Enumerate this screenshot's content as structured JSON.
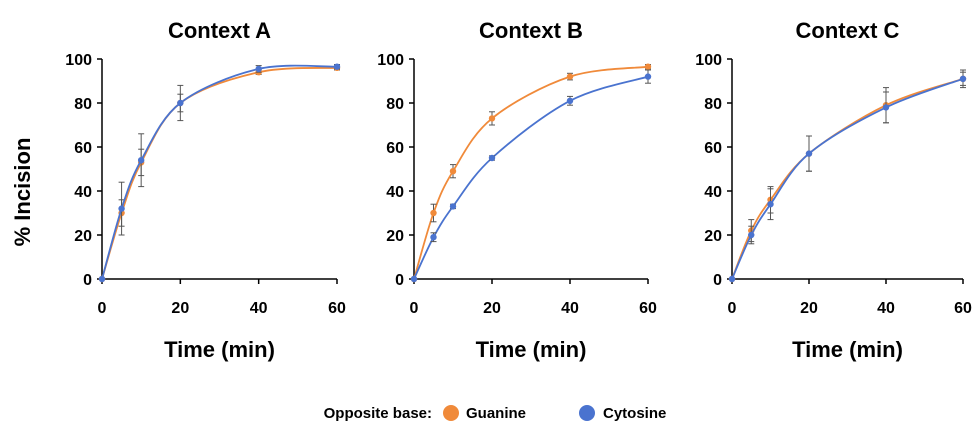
{
  "colors": {
    "Guanine": "#f08a3a",
    "Cytosine": "#4a73cf",
    "axis": "#000000",
    "errorbar": "#555555"
  },
  "legend": {
    "title": "Opposite base:",
    "items": [
      "Guanine",
      "Cytosine"
    ]
  },
  "shared_ylabel": "% Incision",
  "chart_data": [
    {
      "type": "line",
      "title": "Context A",
      "xlabel": "Time (min)",
      "xlim": [
        0,
        60
      ],
      "ylim": [
        0,
        100
      ],
      "xticks": [
        0,
        20,
        40,
        60
      ],
      "yticks": [
        0,
        20,
        40,
        60,
        80,
        100
      ],
      "x": [
        0,
        5,
        10,
        20,
        40,
        60
      ],
      "series": [
        {
          "name": "Guanine",
          "values": [
            0,
            30,
            53,
            80,
            94,
            96
          ],
          "errors": [
            0,
            6,
            6,
            4,
            1,
            1
          ]
        },
        {
          "name": "Cytosine",
          "values": [
            0,
            32,
            54,
            80,
            95.5,
            96.5
          ],
          "errors": [
            0,
            12,
            12,
            8,
            1.5,
            1
          ]
        }
      ]
    },
    {
      "type": "line",
      "title": "Context B",
      "xlabel": "Time (min)",
      "xlim": [
        0,
        60
      ],
      "ylim": [
        0,
        100
      ],
      "xticks": [
        0,
        20,
        40,
        60
      ],
      "yticks": [
        0,
        20,
        40,
        60,
        80,
        100
      ],
      "x": [
        0,
        5,
        10,
        20,
        40,
        60
      ],
      "series": [
        {
          "name": "Guanine",
          "values": [
            0,
            30,
            49,
            73,
            92,
            96.5
          ],
          "errors": [
            0,
            4,
            3,
            3,
            1.5,
            1
          ]
        },
        {
          "name": "Cytosine",
          "values": [
            0,
            19,
            33,
            55,
            81,
            92
          ],
          "errors": [
            0,
            2,
            1,
            1,
            2,
            3
          ]
        }
      ]
    },
    {
      "type": "line",
      "title": "Context C",
      "xlabel": "Time (min)",
      "xlim": [
        0,
        60
      ],
      "ylim": [
        0,
        100
      ],
      "xticks": [
        0,
        20,
        40,
        60
      ],
      "yticks": [
        0,
        20,
        40,
        60,
        80,
        100
      ],
      "x": [
        0,
        5,
        10,
        20,
        40,
        60
      ],
      "series": [
        {
          "name": "Guanine",
          "values": [
            0,
            22,
            36,
            57,
            79,
            91
          ],
          "errors": [
            0,
            5,
            6,
            8,
            8,
            4
          ]
        },
        {
          "name": "Cytosine",
          "values": [
            0,
            20,
            34,
            57,
            78,
            91
          ],
          "errors": [
            0,
            4,
            7,
            8,
            7,
            3
          ]
        }
      ]
    }
  ]
}
